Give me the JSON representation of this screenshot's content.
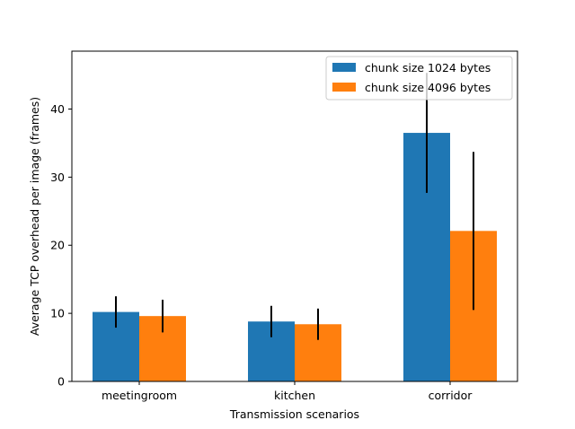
{
  "chart_data": {
    "type": "bar",
    "title": "",
    "xlabel": "Transmission scenarios",
    "ylabel": "Average TCP overhead per image (frames)",
    "categories": [
      "meetingroom",
      "kitchen",
      "corridor"
    ],
    "ylim": [
      0,
      48.5
    ],
    "yticks": [
      0,
      10,
      20,
      30,
      40
    ],
    "grid": false,
    "legend_position": "top-right",
    "series": [
      {
        "name": "chunk size 1024 bytes",
        "color": "#1f77b4",
        "values": [
          10.2,
          8.8,
          36.5
        ],
        "error": [
          2.3,
          2.3,
          8.8
        ]
      },
      {
        "name": "chunk size 4096 bytes",
        "color": "#ff7f0e",
        "values": [
          9.6,
          8.4,
          22.1
        ],
        "error": [
          2.4,
          2.3,
          11.6
        ]
      }
    ]
  }
}
